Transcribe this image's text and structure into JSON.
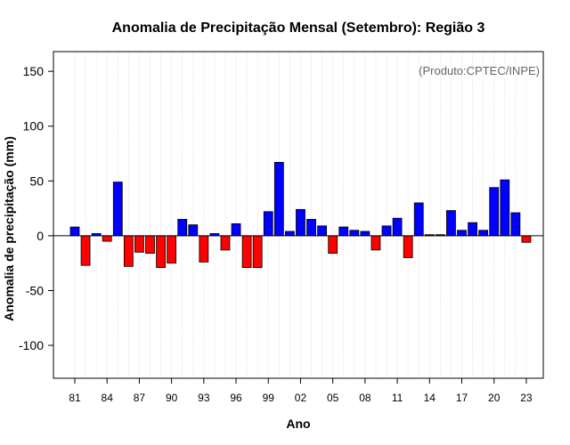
{
  "chart_data": {
    "type": "bar",
    "title": "Anomalia de Precipitação Mensal (Setembro): Região 3",
    "xlabel": "Ano",
    "ylabel": "Anomalia de precipitação (mm)",
    "annotation": "(Produto:CPTEC/INPE)",
    "ylim": [
      -130,
      168
    ],
    "yticks": [
      -100,
      -50,
      0,
      50,
      100,
      150
    ],
    "x_tick_labels": [
      "81",
      "84",
      "87",
      "90",
      "93",
      "96",
      "99",
      "02",
      "05",
      "08",
      "11",
      "14",
      "17",
      "20",
      "23"
    ],
    "x_tick_every": 3,
    "grid": "vertical dotted",
    "colors": {
      "positive": "#0000ff",
      "negative": "#ff0000"
    },
    "categories": [
      "1981",
      "1982",
      "1983",
      "1984",
      "1985",
      "1986",
      "1987",
      "1988",
      "1989",
      "1990",
      "1991",
      "1992",
      "1993",
      "1994",
      "1995",
      "1996",
      "1997",
      "1998",
      "1999",
      "2000",
      "2001",
      "2002",
      "2003",
      "2004",
      "2005",
      "2006",
      "2007",
      "2008",
      "2009",
      "2010",
      "2011",
      "2012",
      "2013",
      "2014",
      "2015",
      "2016",
      "2017",
      "2018",
      "2019",
      "2020",
      "2021",
      "2022",
      "2023"
    ],
    "values": [
      8,
      -27,
      2,
      -5,
      49,
      -28,
      -15,
      -16,
      -29,
      -25,
      15,
      10,
      -24,
      2,
      -13,
      11,
      -29,
      -29,
      22,
      67,
      4,
      24,
      15,
      9,
      -16,
      8,
      5,
      4,
      -13,
      9,
      16,
      -20,
      30,
      1,
      1,
      23,
      5,
      12,
      5,
      44,
      51,
      21,
      -6
    ]
  }
}
